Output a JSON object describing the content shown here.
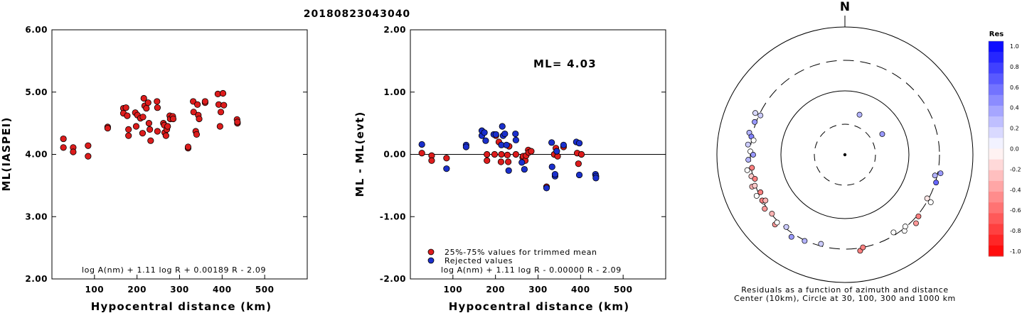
{
  "title": "20180823043040",
  "colors": {
    "accepted": "#dd1c1c",
    "rejected": "#1a2fcc",
    "edge": "#000000"
  },
  "chart_data": [
    {
      "type": "scatter",
      "ylabel": "ML(IASPEI)",
      "xlabel": "Hypocentral distance (km)",
      "xlim": [
        0,
        600
      ],
      "ylim": [
        2.0,
        6.0
      ],
      "xticks": [
        "100",
        "200",
        "300",
        "400",
        "500"
      ],
      "yticks": [
        "2.00",
        "3.00",
        "4.00",
        "5.00",
        "6.00"
      ],
      "formula": "log A(nm) + 1.11 log R + 0.00189 R - 2.09",
      "points": [
        [
          27,
          4.25
        ],
        [
          27,
          4.11
        ],
        [
          50,
          4.11
        ],
        [
          50,
          4.04
        ],
        [
          85,
          4.14
        ],
        [
          85,
          3.97
        ],
        [
          131,
          4.44
        ],
        [
          131,
          4.42
        ],
        [
          168,
          4.74
        ],
        [
          168,
          4.66
        ],
        [
          174,
          4.75
        ],
        [
          177,
          4.62
        ],
        [
          180,
          4.4
        ],
        [
          180,
          4.3
        ],
        [
          196,
          4.67
        ],
        [
          198,
          4.45
        ],
        [
          201,
          4.63
        ],
        [
          208,
          4.58
        ],
        [
          213,
          4.34
        ],
        [
          214,
          4.6
        ],
        [
          216,
          4.9
        ],
        [
          218,
          4.78
        ],
        [
          222,
          4.74
        ],
        [
          226,
          4.83
        ],
        [
          228,
          4.5
        ],
        [
          230,
          4.4
        ],
        [
          232,
          4.22
        ],
        [
          247,
          4.85
        ],
        [
          248,
          4.75
        ],
        [
          248,
          4.37
        ],
        [
          262,
          4.5
        ],
        [
          264,
          4.47
        ],
        [
          265,
          4.35
        ],
        [
          268,
          4.3
        ],
        [
          270,
          4.4
        ],
        [
          272,
          4.45
        ],
        [
          277,
          4.62
        ],
        [
          278,
          4.57
        ],
        [
          284,
          4.61
        ],
        [
          285,
          4.57
        ],
        [
          320,
          4.1
        ],
        [
          320,
          4.12
        ],
        [
          332,
          4.85
        ],
        [
          333,
          4.68
        ],
        [
          338,
          4.37
        ],
        [
          340,
          4.32
        ],
        [
          342,
          4.8
        ],
        [
          344,
          4.63
        ],
        [
          346,
          4.57
        ],
        [
          360,
          4.83
        ],
        [
          360,
          4.85
        ],
        [
          390,
          4.97
        ],
        [
          392,
          4.8
        ],
        [
          395,
          4.45
        ],
        [
          397,
          4.68
        ],
        [
          402,
          4.98
        ],
        [
          404,
          4.79
        ],
        [
          435,
          4.56
        ],
        [
          436,
          4.5
        ],
        [
          436,
          4.52
        ]
      ]
    },
    {
      "type": "scatter",
      "ylabel": "ML - ML(evt)",
      "xlabel": "Hypocentral distance (km)",
      "xlim": [
        0,
        600
      ],
      "ylim": [
        -2.0,
        2.0
      ],
      "xticks": [
        "100",
        "200",
        "300",
        "400",
        "500"
      ],
      "yticks": [
        "-2.00",
        "-1.00",
        "0.00",
        "1.00",
        "2.00"
      ],
      "annotation": "ML= 4.03",
      "formula": "log A(nm) + 1.11 log R - 0.00000 R - 2.09",
      "legend": [
        "25%-75% values for trimmed mean",
        "Rejected values"
      ],
      "legend_position": "bottom-left",
      "zero_line": 0.0,
      "accepted": [
        [
          27,
          0.02
        ],
        [
          50,
          -0.02
        ],
        [
          50,
          -0.1
        ],
        [
          85,
          -0.06
        ],
        [
          180,
          0.0
        ],
        [
          180,
          -0.1
        ],
        [
          198,
          0.0
        ],
        [
          201,
          0.3
        ],
        [
          208,
          0.2
        ],
        [
          213,
          -0.12
        ],
        [
          214,
          0.0
        ],
        [
          228,
          -0.01
        ],
        [
          230,
          -0.12
        ],
        [
          232,
          0.13
        ],
        [
          248,
          0.0
        ],
        [
          264,
          -0.05
        ],
        [
          265,
          -0.03
        ],
        [
          270,
          -0.1
        ],
        [
          272,
          -0.02
        ],
        [
          277,
          0.07
        ],
        [
          278,
          0.03
        ],
        [
          284,
          0.05
        ],
        [
          320,
          -0.52
        ],
        [
          338,
          0.0
        ],
        [
          342,
          0.1
        ],
        [
          346,
          -0.03
        ],
        [
          360,
          0.12
        ],
        [
          392,
          0.02
        ],
        [
          395,
          -0.15
        ],
        [
          402,
          0.0
        ]
      ],
      "rejected": [
        [
          27,
          0.16
        ],
        [
          85,
          -0.23
        ],
        [
          131,
          0.15
        ],
        [
          131,
          0.12
        ],
        [
          168,
          0.38
        ],
        [
          168,
          0.3
        ],
        [
          174,
          0.35
        ],
        [
          177,
          0.22
        ],
        [
          196,
          0.32
        ],
        [
          201,
          0.32
        ],
        [
          214,
          0.15
        ],
        [
          216,
          0.45
        ],
        [
          218,
          0.3
        ],
        [
          222,
          0.33
        ],
        [
          226,
          0.15
        ],
        [
          231,
          -0.26
        ],
        [
          247,
          0.33
        ],
        [
          248,
          0.23
        ],
        [
          262,
          -0.13
        ],
        [
          268,
          -0.24
        ],
        [
          320,
          -0.54
        ],
        [
          332,
          0.19
        ],
        [
          333,
          -0.2
        ],
        [
          340,
          -0.35
        ],
        [
          340,
          -0.32
        ],
        [
          344,
          0.05
        ],
        [
          360,
          0.15
        ],
        [
          390,
          0.2
        ],
        [
          397,
          0.18
        ],
        [
          397,
          -0.33
        ],
        [
          435,
          -0.32
        ],
        [
          436,
          -0.35
        ],
        [
          436,
          -0.38
        ]
      ]
    },
    {
      "type": "scatter",
      "title": "N",
      "caption": "Residuals as a function of azimuth and distance",
      "caption2": "Center (10km), Circle at 30, 100, 300 and 1000 km",
      "colorbar_label": "Res",
      "colorbar_ticks": [
        "1.0",
        "0.8",
        "0.6",
        "0.4",
        "0.2",
        "0.0",
        "-0.2",
        "-0.4",
        "-0.6",
        "-0.8",
        "-1.0"
      ],
      "stations": [
        [
          20,
          0.3
        ],
        [
          61,
          0.4
        ],
        [
          240,
          0.0
        ],
        [
          295,
          0.15
        ],
        [
          290,
          0.4
        ],
        [
          295,
          0.2
        ],
        [
          283,
          0.3
        ],
        [
          281,
          0.5
        ],
        [
          279,
          0.0
        ],
        [
          276,
          0.2
        ],
        [
          272,
          0.0
        ],
        [
          270,
          0.4
        ],
        [
          267,
          0.3
        ],
        [
          262,
          -0.5
        ],
        [
          261,
          0.0
        ],
        [
          257,
          -0.2
        ],
        [
          255,
          -0.5
        ],
        [
          251,
          -0.3
        ],
        [
          251,
          -0.2
        ],
        [
          246,
          -0.5
        ],
        [
          245,
          0.0
        ],
        [
          241,
          -0.5
        ],
        [
          240,
          -0.3
        ],
        [
          236,
          -0.4
        ],
        [
          231,
          -0.3
        ],
        [
          225,
          -0.4
        ],
        [
          225,
          0.0
        ],
        [
          219,
          0.2
        ],
        [
          213,
          0.4
        ],
        [
          205,
          0.3
        ],
        [
          195,
          0.2
        ],
        [
          171,
          -0.5
        ],
        [
          169,
          -0.5
        ],
        [
          148,
          0.0
        ],
        [
          142,
          0.0
        ],
        [
          140,
          0.0
        ],
        [
          134,
          -0.4
        ],
        [
          130,
          -0.5
        ],
        [
          118,
          -0.1
        ],
        [
          119,
          0.0
        ],
        [
          107,
          0.6
        ],
        [
          103,
          0.3
        ],
        [
          101,
          0.4
        ]
      ]
    }
  ]
}
